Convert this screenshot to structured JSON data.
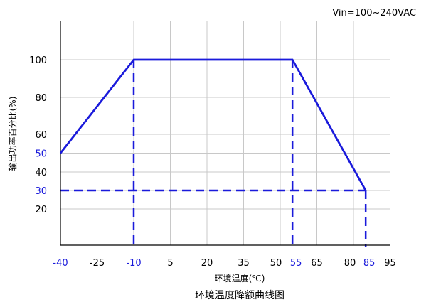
{
  "chart_data": {
    "type": "line",
    "title": "环境温度降额曲线图",
    "annotation": "Vin=100~240VAC",
    "xlabel": "环境温度(℃)",
    "ylabel": "输出功率百分比(%)",
    "x_ticks": [
      {
        "value": -40,
        "label": "-40",
        "highlight": true
      },
      {
        "value": -25,
        "label": "-25",
        "highlight": false
      },
      {
        "value": -10,
        "label": "-10",
        "highlight": true
      },
      {
        "value": 5,
        "label": "5",
        "highlight": false
      },
      {
        "value": 20,
        "label": "20",
        "highlight": false
      },
      {
        "value": 35,
        "label": "35",
        "highlight": false
      },
      {
        "value": 50,
        "label": "50",
        "highlight": false
      },
      {
        "value": 55,
        "label": "55",
        "highlight": true
      },
      {
        "value": 65,
        "label": "65",
        "highlight": false
      },
      {
        "value": 80,
        "label": "80",
        "highlight": false
      },
      {
        "value": 85,
        "label": "85",
        "highlight": true
      },
      {
        "value": 95,
        "label": "95",
        "highlight": false
      }
    ],
    "y_ticks": [
      {
        "value": 20,
        "label": "20",
        "highlight": false
      },
      {
        "value": 30,
        "label": "30",
        "highlight": true
      },
      {
        "value": 40,
        "label": "40",
        "highlight": false
      },
      {
        "value": 50,
        "label": "50",
        "highlight": true
      },
      {
        "value": 60,
        "label": "60",
        "highlight": false
      },
      {
        "value": 80,
        "label": "80",
        "highlight": false
      },
      {
        "value": 100,
        "label": "100",
        "highlight": false
      }
    ],
    "x_grid": [
      -40,
      -25,
      -10,
      5,
      20,
      35,
      50,
      65,
      80,
      95
    ],
    "y_grid": [
      20,
      30,
      40,
      50,
      60,
      80,
      100
    ],
    "series": [
      {
        "x": [
          -40,
          -10,
          55,
          85
        ],
        "y": [
          50,
          100,
          100,
          30
        ]
      }
    ],
    "reference_lines": {
      "vertical": [
        {
          "x": -10,
          "y_to": 100
        },
        {
          "x": 55,
          "y_to": 100
        },
        {
          "x": 85,
          "y_to": 30
        }
      ],
      "horizontal": [
        {
          "y": 30,
          "x_to": 85
        }
      ]
    },
    "grid": true,
    "colors": {
      "series": "#1a1adb",
      "highlight": "#1a1adb",
      "grid": "#c8c8c8",
      "axis": "#000000",
      "text": "#000000"
    }
  }
}
